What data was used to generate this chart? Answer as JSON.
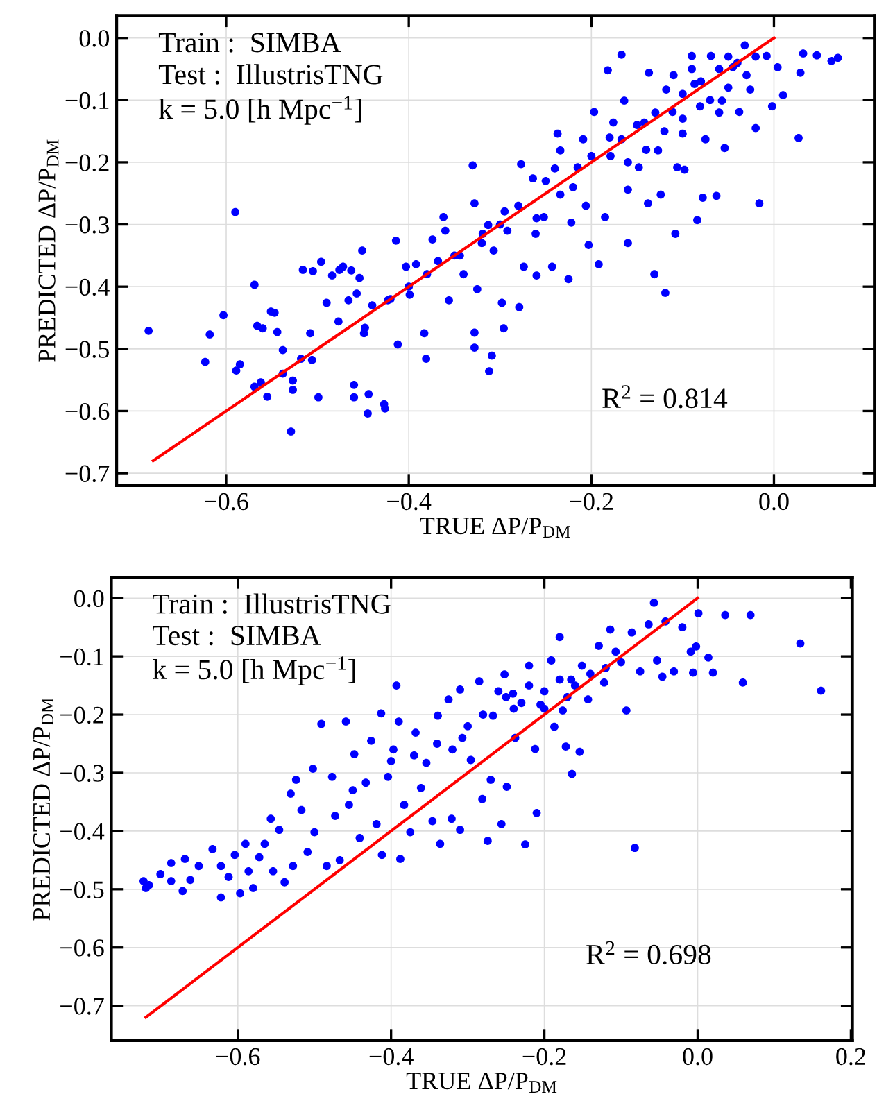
{
  "chart_data": [
    {
      "type": "scatter",
      "xlabel": "TRUE ΔP/P$_{DM}$",
      "ylabel": "PREDICTED ΔP/P$_{DM}$",
      "xlim": [
        -0.72,
        0.11
      ],
      "ylim": [
        -0.72,
        0.036
      ],
      "xticks": [
        {
          "value": -0.6,
          "label": "−0.6"
        },
        {
          "value": -0.4,
          "label": "−0.4"
        },
        {
          "value": -0.2,
          "label": "−0.2"
        },
        {
          "value": 0.0,
          "label": "0.0"
        }
      ],
      "yticks": [
        {
          "value": 0.0,
          "label": "0.0"
        },
        {
          "value": -0.1,
          "label": "−0.1"
        },
        {
          "value": -0.2,
          "label": "−0.2"
        },
        {
          "value": -0.3,
          "label": "−0.3"
        },
        {
          "value": -0.4,
          "label": "−0.4"
        },
        {
          "value": -0.5,
          "label": "−0.5"
        },
        {
          "value": -0.6,
          "label": "−0.6"
        },
        {
          "value": -0.7,
          "label": "−0.7"
        }
      ],
      "grid": true,
      "annotations": [
        "Train :  SIMBA",
        "Test :  IllustrisTNG",
        "k = 5.0 [h Mpc$^{−1}$]",
        "R$^{2}$ = 0.814"
      ],
      "series": [
        {
          "marker": "circle",
          "color": "#0000ff",
          "x": [
            -0.685,
            -0.623,
            -0.618,
            -0.603,
            -0.59,
            -0.589,
            -0.585,
            -0.569,
            -0.569,
            -0.562,
            -0.555,
            -0.566,
            -0.56,
            -0.551,
            -0.547,
            -0.544,
            -0.538,
            -0.538,
            -0.527,
            -0.527,
            -0.529,
            -0.518,
            -0.516,
            -0.506,
            -0.508,
            -0.505,
            -0.499,
            -0.496,
            -0.49,
            -0.484,
            -0.477,
            -0.476,
            -0.472,
            -0.466,
            -0.463,
            -0.46,
            -0.46,
            -0.457,
            -0.454,
            -0.451,
            -0.449,
            -0.448,
            -0.444,
            -0.445,
            -0.427,
            -0.426,
            -0.423,
            -0.414,
            -0.412,
            -0.399,
            -0.403,
            -0.392,
            -0.381,
            -0.383,
            -0.374,
            -0.368,
            -0.362,
            -0.356,
            -0.344,
            -0.33,
            -0.328,
            -0.328,
            -0.328,
            -0.325,
            -0.319,
            -0.313,
            -0.312,
            -0.309,
            -0.307,
            -0.298,
            -0.296,
            -0.295,
            -0.292,
            -0.279,
            -0.277,
            -0.274,
            -0.264,
            -0.261,
            -0.26,
            -0.252,
            -0.243,
            -0.237,
            -0.234,
            -0.234,
            -0.225,
            -0.222,
            -0.215,
            -0.209,
            -0.206,
            -0.203,
            -0.197,
            -0.192,
            -0.185,
            -0.182,
            -0.179,
            -0.176,
            -0.167,
            -0.167,
            -0.164,
            -0.16,
            -0.16,
            -0.148,
            -0.142,
            -0.138,
            -0.137,
            -0.131,
            -0.127,
            -0.124,
            -0.119,
            -0.118,
            -0.111,
            -0.108,
            -0.106,
            -0.1,
            -0.098,
            -0.09,
            -0.087,
            -0.084,
            -0.081,
            -0.078,
            -0.075,
            -0.069,
            -0.063,
            -0.057,
            -0.054,
            -0.045,
            -0.038,
            -0.032,
            -0.026,
            -0.02,
            -0.016,
            -0.008,
            -0.002,
            0.004,
            0.01,
            0.027,
            0.029,
            0.032,
            0.047,
            0.063,
            0.07,
            -0.25,
            -0.2,
            -0.18,
            -0.15,
            -0.13,
            -0.1,
            -0.08,
            -0.06,
            -0.04,
            -0.02,
            -0.12,
            -0.1,
            -0.07,
            -0.05,
            -0.03,
            -0.14,
            -0.16,
            -0.22,
            -0.28,
            -0.3,
            -0.32,
            -0.35,
            -0.38,
            -0.4,
            -0.42,
            -0.44,
            -0.36,
            -0.34,
            -0.26,
            -0.24,
            -0.09,
            -0.05,
            -0.11,
            -0.06
          ],
          "values": [
            -0.471,
            -0.521,
            -0.477,
            -0.446,
            -0.28,
            -0.535,
            -0.525,
            -0.397,
            -0.561,
            -0.554,
            -0.577,
            -0.463,
            -0.467,
            -0.44,
            -0.442,
            -0.473,
            -0.502,
            -0.54,
            -0.551,
            -0.566,
            -0.633,
            -0.516,
            -0.373,
            -0.518,
            -0.475,
            -0.375,
            -0.578,
            -0.36,
            -0.426,
            -0.382,
            -0.456,
            -0.373,
            -0.368,
            -0.422,
            -0.374,
            -0.558,
            -0.578,
            -0.411,
            -0.386,
            -0.342,
            -0.475,
            -0.466,
            -0.573,
            -0.604,
            -0.589,
            -0.596,
            -0.422,
            -0.326,
            -0.493,
            -0.413,
            -0.368,
            -0.364,
            -0.516,
            -0.475,
            -0.324,
            -0.359,
            -0.288,
            -0.422,
            -0.35,
            -0.205,
            -0.474,
            -0.498,
            -0.266,
            -0.404,
            -0.315,
            -0.301,
            -0.536,
            -0.511,
            -0.342,
            -0.426,
            -0.467,
            -0.279,
            -0.31,
            -0.433,
            -0.203,
            -0.368,
            -0.226,
            -0.315,
            -0.382,
            -0.288,
            -0.368,
            -0.154,
            -0.181,
            -0.252,
            -0.388,
            -0.297,
            -0.208,
            -0.163,
            -0.27,
            -0.333,
            -0.119,
            -0.364,
            -0.288,
            -0.052,
            -0.19,
            -0.136,
            -0.027,
            -0.163,
            -0.101,
            -0.244,
            -0.33,
            -0.208,
            -0.136,
            -0.266,
            -0.056,
            -0.38,
            -0.181,
            -0.252,
            -0.41,
            -0.083,
            -0.119,
            -0.315,
            -0.208,
            -0.154,
            -0.212,
            -0.029,
            -0.074,
            -0.293,
            -0.11,
            -0.257,
            -0.163,
            -0.029,
            -0.254,
            -0.101,
            -0.177,
            -0.047,
            -0.119,
            -0.012,
            -0.083,
            -0.145,
            -0.266,
            -0.029,
            -0.11,
            -0.047,
            -0.092,
            -0.161,
            -0.056,
            -0.025,
            -0.028,
            -0.037,
            -0.032,
            -0.23,
            -0.19,
            -0.16,
            -0.14,
            -0.12,
            -0.09,
            -0.07,
            -0.05,
            -0.04,
            -0.03,
            -0.15,
            -0.13,
            -0.1,
            -0.08,
            -0.06,
            -0.18,
            -0.2,
            -0.24,
            -0.27,
            -0.3,
            -0.33,
            -0.35,
            -0.38,
            -0.4,
            -0.42,
            -0.43,
            -0.31,
            -0.38,
            -0.29,
            -0.21,
            -0.05,
            -0.03,
            -0.06,
            -0.12
          ]
        },
        {
          "type": "line",
          "color": "#ff0000",
          "x": [
            -0.68,
            0.0
          ],
          "values": [
            -0.68,
            0.0
          ]
        }
      ]
    },
    {
      "type": "scatter",
      "xlabel": "TRUE ΔP/P$_{DM}$",
      "ylabel": "PREDICTED ΔP/P$_{DM}$",
      "xlim": [
        -0.765,
        0.202
      ],
      "ylim": [
        -0.76,
        0.036
      ],
      "xticks": [
        {
          "value": -0.6,
          "label": "−0.6"
        },
        {
          "value": -0.4,
          "label": "−0.4"
        },
        {
          "value": -0.2,
          "label": "−0.2"
        },
        {
          "value": 0.0,
          "label": "0.0"
        },
        {
          "value": 0.2,
          "label": "0.2"
        }
      ],
      "yticks": [
        {
          "value": 0.0,
          "label": "0.0"
        },
        {
          "value": -0.1,
          "label": "−0.1"
        },
        {
          "value": -0.2,
          "label": "−0.2"
        },
        {
          "value": -0.3,
          "label": "−0.3"
        },
        {
          "value": -0.4,
          "label": "−0.4"
        },
        {
          "value": -0.5,
          "label": "−0.5"
        },
        {
          "value": -0.6,
          "label": "−0.6"
        },
        {
          "value": -0.7,
          "label": "−0.7"
        }
      ],
      "grid": true,
      "annotations": [
        "Train :  IllustrisTNG",
        "Test :  SIMBA",
        "k = 5.0 [h Mpc$^{−1}$]",
        "R$^{2}$ = 0.698"
      ],
      "series": [
        {
          "marker": "circle",
          "color": "#0000ff",
          "x": [
            -0.723,
            -0.72,
            -0.716,
            -0.701,
            -0.687,
            -0.687,
            -0.672,
            -0.669,
            -0.662,
            -0.651,
            -0.633,
            -0.622,
            -0.622,
            -0.612,
            -0.604,
            -0.597,
            -0.59,
            -0.586,
            -0.58,
            -0.572,
            -0.565,
            -0.557,
            -0.554,
            -0.546,
            -0.539,
            -0.531,
            -0.528,
            -0.524,
            -0.517,
            -0.509,
            -0.502,
            -0.5,
            -0.491,
            -0.484,
            -0.477,
            -0.473,
            -0.467,
            -0.459,
            -0.455,
            -0.448,
            -0.441,
            -0.433,
            -0.426,
            -0.419,
            -0.413,
            -0.412,
            -0.404,
            -0.397,
            -0.393,
            -0.39,
            -0.388,
            -0.383,
            -0.375,
            -0.368,
            -0.361,
            -0.354,
            -0.346,
            -0.339,
            -0.336,
            -0.325,
            -0.321,
            -0.31,
            -0.31,
            -0.307,
            -0.296,
            -0.285,
            -0.281,
            -0.274,
            -0.27,
            -0.267,
            -0.256,
            -0.252,
            -0.249,
            -0.241,
            -0.238,
            -0.225,
            -0.22,
            -0.212,
            -0.21,
            -0.205,
            -0.191,
            -0.187,
            -0.18,
            -0.176,
            -0.172,
            -0.165,
            -0.164,
            -0.154,
            -0.151,
            -0.143,
            -0.129,
            -0.122,
            -0.114,
            -0.107,
            -0.093,
            -0.086,
            -0.082,
            -0.075,
            -0.064,
            -0.057,
            -0.053,
            -0.046,
            -0.042,
            -0.031,
            -0.02,
            -0.009,
            -0.006,
            -0.002,
            0.001,
            0.014,
            0.02,
            0.036,
            0.059,
            0.069,
            0.134,
            0.161,
            -0.25,
            -0.22,
            -0.2,
            -0.18,
            -0.16,
            -0.14,
            -0.12,
            -0.24,
            -0.28,
            -0.3,
            -0.34,
            -0.37,
            -0.4,
            -0.2,
            -0.1,
            -0.26,
            -0.23,
            -0.17,
            -0.32,
            -0.45
          ],
          "values": [
            -0.486,
            -0.498,
            -0.493,
            -0.474,
            -0.455,
            -0.486,
            -0.503,
            -0.448,
            -0.484,
            -0.46,
            -0.431,
            -0.514,
            -0.46,
            -0.479,
            -0.441,
            -0.507,
            -0.422,
            -0.469,
            -0.498,
            -0.445,
            -0.422,
            -0.379,
            -0.469,
            -0.398,
            -0.488,
            -0.336,
            -0.46,
            -0.312,
            -0.364,
            -0.436,
            -0.293,
            -0.402,
            -0.216,
            -0.46,
            -0.307,
            -0.374,
            -0.45,
            -0.212,
            -0.355,
            -0.268,
            -0.412,
            -0.317,
            -0.245,
            -0.388,
            -0.198,
            -0.441,
            -0.307,
            -0.26,
            -0.15,
            -0.212,
            -0.448,
            -0.355,
            -0.402,
            -0.231,
            -0.326,
            -0.283,
            -0.383,
            -0.202,
            -0.422,
            -0.174,
            -0.379,
            -0.157,
            -0.398,
            -0.24,
            -0.278,
            -0.143,
            -0.345,
            -0.417,
            -0.312,
            -0.202,
            -0.388,
            -0.131,
            -0.324,
            -0.164,
            -0.24,
            -0.423,
            -0.116,
            -0.259,
            -0.369,
            -0.183,
            -0.107,
            -0.221,
            -0.067,
            -0.193,
            -0.255,
            -0.14,
            -0.302,
            -0.264,
            -0.116,
            -0.174,
            -0.082,
            -0.145,
            -0.054,
            -0.092,
            -0.193,
            -0.059,
            -0.429,
            -0.126,
            -0.045,
            -0.008,
            -0.107,
            -0.135,
            -0.04,
            -0.126,
            -0.05,
            -0.092,
            -0.128,
            -0.083,
            -0.026,
            -0.102,
            -0.128,
            -0.029,
            -0.145,
            -0.029,
            -0.078,
            -0.159,
            -0.17,
            -0.15,
            -0.16,
            -0.14,
            -0.15,
            -0.13,
            -0.12,
            -0.19,
            -0.2,
            -0.22,
            -0.25,
            -0.27,
            -0.28,
            -0.19,
            -0.11,
            -0.16,
            -0.18,
            -0.17,
            -0.26,
            -0.33
          ]
        },
        {
          "type": "line",
          "color": "#ff0000",
          "x": [
            -0.72,
            0.0
          ],
          "values": [
            -0.72,
            0.0
          ]
        }
      ]
    }
  ]
}
